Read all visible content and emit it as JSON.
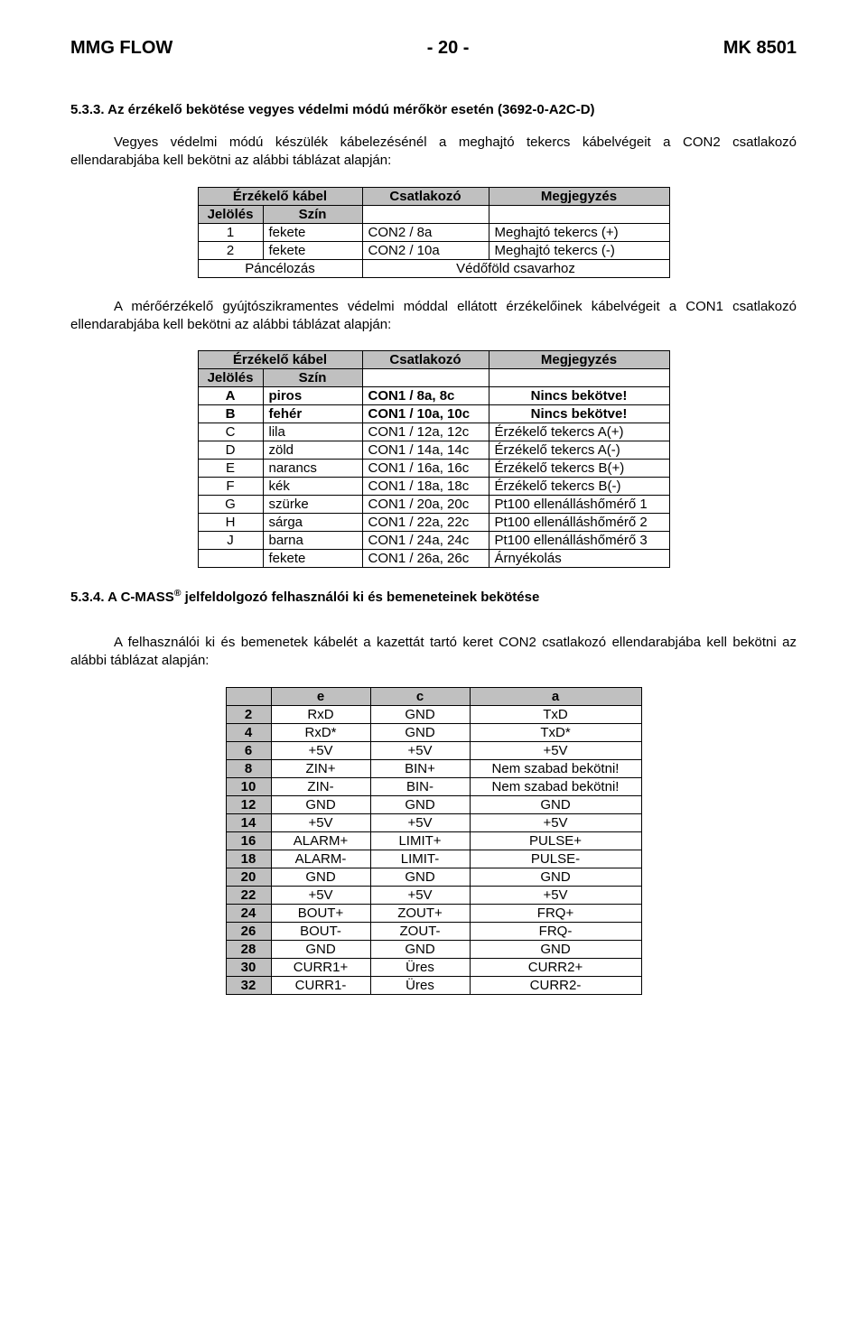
{
  "header": {
    "left": "MMG FLOW",
    "center": "- 20 -",
    "right": "MK 8501"
  },
  "section1": {
    "num": "5.3.3. Az érzékelő bekötése vegyes védelmi módú mérőkör esetén (3692-0-A2C-D)",
    "para": "Vegyes védelmi módú készülék kábelezésénél a meghajtó tekercs kábelvégeit a CON2 csatlakozó ellendarabjába kell bekötni az alábbi táblázat alapján:"
  },
  "table1": {
    "h_sensor": "Érzékelő kábel",
    "h_conn": "Csatlakozó",
    "h_note": "Megjegyzés",
    "h_mark": "Jelölés",
    "h_color": "Szín",
    "rows": [
      {
        "m": "1",
        "c": "fekete",
        "conn": "CON2 / 8a",
        "note": "Meghajtó tekercs (+)"
      },
      {
        "m": "2",
        "c": "fekete",
        "conn": "CON2 / 10a",
        "note": "Meghajtó tekercs (-)"
      }
    ],
    "shield": "Páncélozás",
    "shield_note": "Védőföld csavarhoz"
  },
  "mid_para": "A mérőérzékelő gyújtószikramentes védelmi móddal ellátott érzékelőinek kábelvégeit a CON1 csatlakozó ellendarabjába kell bekötni az alábbi táblázat alapján:",
  "table2": {
    "h_sensor": "Érzékelő kábel",
    "h_conn": "Csatlakozó",
    "h_note": "Megjegyzés",
    "h_mark": "Jelölés",
    "h_color": "Szín",
    "rows": [
      {
        "m": "A",
        "c": "piros",
        "conn": "CON1 /  8a, 8c",
        "note": "Nincs bekötve!"
      },
      {
        "m": "B",
        "c": "fehér",
        "conn": "CON1 / 10a, 10c",
        "note": "Nincs bekötve!"
      },
      {
        "m": "C",
        "c": "lila",
        "conn": "CON1 / 12a, 12c",
        "note": "Érzékelő tekercs A(+)"
      },
      {
        "m": "D",
        "c": "zöld",
        "conn": "CON1 / 14a, 14c",
        "note": "Érzékelő tekercs A(-)"
      },
      {
        "m": "E",
        "c": "narancs",
        "conn": "CON1 / 16a, 16c",
        "note": "Érzékelő tekercs B(+)"
      },
      {
        "m": "F",
        "c": "kék",
        "conn": "CON1 / 18a, 18c",
        "note": "Érzékelő tekercs B(-)"
      },
      {
        "m": "G",
        "c": "szürke",
        "conn": "CON1 / 20a, 20c",
        "note": "Pt100 ellenálláshőmérő 1"
      },
      {
        "m": "H",
        "c": "sárga",
        "conn": "CON1 / 22a, 22c",
        "note": "Pt100 ellenálláshőmérő 2"
      },
      {
        "m": "J",
        "c": "barna",
        "conn": "CON1 / 24a, 24c",
        "note": "Pt100 ellenálláshőmérő 3"
      },
      {
        "m": "",
        "c": "fekete",
        "conn": "CON1 / 26a, 26c",
        "note": "Árnyékolás"
      }
    ]
  },
  "section2": {
    "num_prefix": "5.3.4. A C-MASS",
    "num_suffix": " jelfeldolgozó felhasználói ki és bemeneteinek bekötése",
    "para": "A felhasználói ki és bemenetek kábelét a kazettát tartó keret CON2 csatlakozó ellendarabjába kell bekötni az alábbi táblázat alapján:"
  },
  "table3": {
    "h_e": "e",
    "h_c": "c",
    "h_a": "a",
    "rows": [
      {
        "n": "2",
        "e": "RxD",
        "c": "GND",
        "a": "TxD"
      },
      {
        "n": "4",
        "e": "RxD*",
        "c": "GND",
        "a": "TxD*"
      },
      {
        "n": "6",
        "e": "+5V",
        "c": "+5V",
        "a": "+5V"
      },
      {
        "n": "8",
        "e": "ZIN+",
        "c": "BIN+",
        "a": "Nem szabad bekötni!"
      },
      {
        "n": "10",
        "e": "ZIN-",
        "c": "BIN-",
        "a": "Nem szabad bekötni!"
      },
      {
        "n": "12",
        "e": "GND",
        "c": "GND",
        "a": "GND"
      },
      {
        "n": "14",
        "e": "+5V",
        "c": "+5V",
        "a": "+5V"
      },
      {
        "n": "16",
        "e": "ALARM+",
        "c": "LIMIT+",
        "a": "PULSE+"
      },
      {
        "n": "18",
        "e": "ALARM-",
        "c": "LIMIT-",
        "a": "PULSE-"
      },
      {
        "n": "20",
        "e": "GND",
        "c": "GND",
        "a": "GND"
      },
      {
        "n": "22",
        "e": "+5V",
        "c": "+5V",
        "a": "+5V"
      },
      {
        "n": "24",
        "e": "BOUT+",
        "c": "ZOUT+",
        "a": "FRQ+"
      },
      {
        "n": "26",
        "e": "BOUT-",
        "c": "ZOUT-",
        "a": "FRQ-"
      },
      {
        "n": "28",
        "e": "GND",
        "c": "GND",
        "a": "GND"
      },
      {
        "n": "30",
        "e": "CURR1+",
        "c": "Üres",
        "a": "CURR2+"
      },
      {
        "n": "32",
        "e": "CURR1-",
        "c": "Üres",
        "a": "CURR2-"
      }
    ]
  }
}
